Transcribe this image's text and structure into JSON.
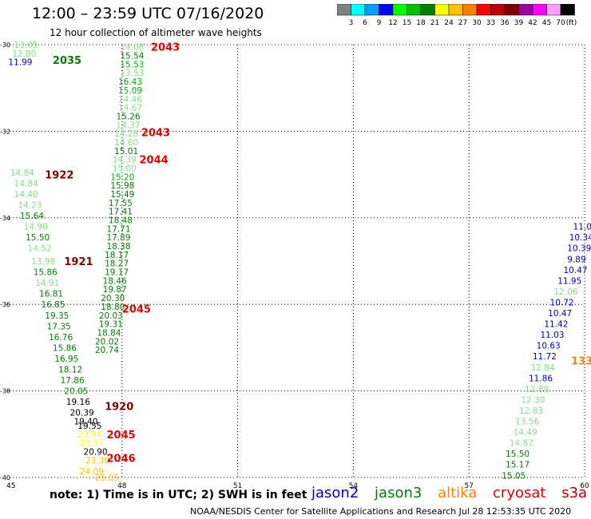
{
  "header": {
    "title": "12:00 – 23:59 UTC 07/16/2020",
    "subtitle": "12 hour collection of altimeter wave heights"
  },
  "scale": {
    "colors": [
      "#808080",
      "#00ffff",
      "#00a0ff",
      "#0000ff",
      "#00ff00",
      "#00c000",
      "#008000",
      "#ffff00",
      "#ffc000",
      "#ff8000",
      "#ff0000",
      "#c00000",
      "#800000",
      "#a000a0",
      "#ff00ff",
      "#ffa0ff",
      "#000000"
    ],
    "labels": [
      "3",
      "6",
      "9",
      "12",
      "15",
      "18",
      "21",
      "24",
      "27",
      "30",
      "33",
      "36",
      "39",
      "42",
      "45",
      "70"
    ],
    "unit": "(ft)"
  },
  "map": {
    "lon_min": 45,
    "lon_max": 60,
    "lat_min": -40,
    "lat_max": -30,
    "lon_ticks": [
      45,
      48,
      51,
      54,
      57,
      60
    ],
    "lat_ticks": [
      -30,
      -32,
      -34,
      -36,
      -38,
      -40
    ],
    "time_labels": [
      {
        "text": "2035",
        "lon": 46.2,
        "lat": -30.35,
        "color": "#008000"
      },
      {
        "text": "2043",
        "lon": 48.75,
        "lat": -30.05,
        "color": "#e00000"
      },
      {
        "text": "2043",
        "lon": 48.5,
        "lat": -32.02,
        "color": "#e00000"
      },
      {
        "text": "2044",
        "lon": 48.45,
        "lat": -32.65,
        "color": "#e00000"
      },
      {
        "text": "1922",
        "lon": 46.0,
        "lat": -33.0,
        "color": "#800000"
      },
      {
        "text": "1921",
        "lon": 46.5,
        "lat": -35.0,
        "color": "#800000"
      },
      {
        "text": "2045",
        "lon": 48.0,
        "lat": -36.1,
        "color": "#e00000"
      },
      {
        "text": "1920",
        "lon": 47.55,
        "lat": -38.35,
        "color": "#800000"
      },
      {
        "text": "2045",
        "lon": 47.6,
        "lat": -39.0,
        "color": "#e00000"
      },
      {
        "text": "2046",
        "lon": 47.6,
        "lat": -39.55,
        "color": "#e00000"
      },
      {
        "text": "133",
        "lon": 59.65,
        "lat": -37.3,
        "color": "#ff8000"
      }
    ],
    "points": [
      {
        "v": "13.05",
        "lon": 45.2,
        "lat": -30.0,
        "c": "#80e080"
      },
      {
        "v": "12.80",
        "lon": 45.15,
        "lat": -30.2,
        "c": "#80e080"
      },
      {
        "v": "11.99",
        "lon": 45.05,
        "lat": -30.4,
        "c": "#0000c0"
      },
      {
        "v": "14.08",
        "lon": 47.95,
        "lat": -30.05,
        "c": "#80e080"
      },
      {
        "v": "15.54",
        "lon": 47.95,
        "lat": -30.25,
        "c": "#008000"
      },
      {
        "v": "15.53",
        "lon": 47.95,
        "lat": -30.45,
        "c": "#00b000"
      },
      {
        "v": "13.53",
        "lon": 47.95,
        "lat": -30.65,
        "c": "#80e080"
      },
      {
        "v": "16.43",
        "lon": 47.9,
        "lat": -30.85,
        "c": "#00b000"
      },
      {
        "v": "15.09",
        "lon": 47.9,
        "lat": -31.05,
        "c": "#00b000"
      },
      {
        "v": "14.46",
        "lon": 47.9,
        "lat": -31.25,
        "c": "#80e080"
      },
      {
        "v": "14.67",
        "lon": 47.9,
        "lat": -31.45,
        "c": "#80e080"
      },
      {
        "v": "15.26",
        "lon": 47.85,
        "lat": -31.65,
        "c": "#008000"
      },
      {
        "v": "14.37",
        "lon": 47.85,
        "lat": -31.85,
        "c": "#80e080"
      },
      {
        "v": "14.28",
        "lon": 47.8,
        "lat": -32.05,
        "c": "#80e080"
      },
      {
        "v": "14.60",
        "lon": 47.8,
        "lat": -32.25,
        "c": "#80e080"
      },
      {
        "v": "15.01",
        "lon": 47.8,
        "lat": -32.45,
        "c": "#008000"
      },
      {
        "v": "14.39",
        "lon": 47.75,
        "lat": -32.65,
        "c": "#80e080"
      },
      {
        "v": "15.00",
        "lon": 47.75,
        "lat": -32.85,
        "c": "#80e080"
      },
      {
        "v": "15.20",
        "lon": 47.7,
        "lat": -33.05,
        "c": "#00b000"
      },
      {
        "v": "15.98",
        "lon": 47.7,
        "lat": -33.25,
        "c": "#008000"
      },
      {
        "v": "15.49",
        "lon": 47.7,
        "lat": -33.45,
        "c": "#008000"
      },
      {
        "v": "17.55",
        "lon": 47.65,
        "lat": -33.65,
        "c": "#008000"
      },
      {
        "v": "17.41",
        "lon": 47.65,
        "lat": -33.85,
        "c": "#008000"
      },
      {
        "v": "18.48",
        "lon": 47.65,
        "lat": -34.05,
        "c": "#008000"
      },
      {
        "v": "17.71",
        "lon": 47.6,
        "lat": -34.25,
        "c": "#008000"
      },
      {
        "v": "17.89",
        "lon": 47.6,
        "lat": -34.45,
        "c": "#008000"
      },
      {
        "v": "18.38",
        "lon": 47.6,
        "lat": -34.65,
        "c": "#008000"
      },
      {
        "v": "18.17",
        "lon": 47.55,
        "lat": -34.85,
        "c": "#008000"
      },
      {
        "v": "18.27",
        "lon": 47.55,
        "lat": -35.05,
        "c": "#008000"
      },
      {
        "v": "19.17",
        "lon": 47.55,
        "lat": -35.25,
        "c": "#008000"
      },
      {
        "v": "18.46",
        "lon": 47.5,
        "lat": -35.45,
        "c": "#008000"
      },
      {
        "v": "19.87",
        "lon": 47.5,
        "lat": -35.65,
        "c": "#008000"
      },
      {
        "v": "20.30",
        "lon": 47.45,
        "lat": -35.85,
        "c": "#008000"
      },
      {
        "v": "18.80",
        "lon": 47.45,
        "lat": -36.05,
        "c": "#008000"
      },
      {
        "v": "20.03",
        "lon": 47.4,
        "lat": -36.25,
        "c": "#008000"
      },
      {
        "v": "19.31",
        "lon": 47.4,
        "lat": -36.45,
        "c": "#008000"
      },
      {
        "v": "18.84",
        "lon": 47.35,
        "lat": -36.65,
        "c": "#008000"
      },
      {
        "v": "20.02",
        "lon": 47.3,
        "lat": -36.85,
        "c": "#008000"
      },
      {
        "v": "20.74",
        "lon": 47.3,
        "lat": -37.05,
        "c": "#008000"
      },
      {
        "v": "14.84",
        "lon": 45.1,
        "lat": -32.95,
        "c": "#80e080"
      },
      {
        "v": "14.84",
        "lon": 45.2,
        "lat": -33.2,
        "c": "#80e080"
      },
      {
        "v": "14.40",
        "lon": 45.2,
        "lat": -33.45,
        "c": "#80e080"
      },
      {
        "v": "14.23",
        "lon": 45.3,
        "lat": -33.7,
        "c": "#80e080"
      },
      {
        "v": "15.64",
        "lon": 45.35,
        "lat": -33.95,
        "c": "#008000"
      },
      {
        "v": "14.90",
        "lon": 45.45,
        "lat": -34.2,
        "c": "#80e080"
      },
      {
        "v": "15.50",
        "lon": 45.5,
        "lat": -34.45,
        "c": "#008000"
      },
      {
        "v": "14.52",
        "lon": 45.55,
        "lat": -34.7,
        "c": "#80e080"
      },
      {
        "v": "13.98",
        "lon": 45.65,
        "lat": -35.0,
        "c": "#80e080"
      },
      {
        "v": "15.86",
        "lon": 45.7,
        "lat": -35.25,
        "c": "#008000"
      },
      {
        "v": "14.91",
        "lon": 45.75,
        "lat": -35.5,
        "c": "#80e080"
      },
      {
        "v": "16.81",
        "lon": 45.85,
        "lat": -35.75,
        "c": "#008000"
      },
      {
        "v": "16.85",
        "lon": 45.9,
        "lat": -36.0,
        "c": "#008000"
      },
      {
        "v": "19.35",
        "lon": 46.0,
        "lat": -36.25,
        "c": "#008000"
      },
      {
        "v": "17.35",
        "lon": 46.05,
        "lat": -36.5,
        "c": "#008000"
      },
      {
        "v": "16.76",
        "lon": 46.1,
        "lat": -36.75,
        "c": "#008000"
      },
      {
        "v": "15.86",
        "lon": 46.2,
        "lat": -37.0,
        "c": "#008000"
      },
      {
        "v": "16.95",
        "lon": 46.25,
        "lat": -37.25,
        "c": "#008000"
      },
      {
        "v": "18.12",
        "lon": 46.35,
        "lat": -37.5,
        "c": "#008000"
      },
      {
        "v": "17.86",
        "lon": 46.4,
        "lat": -37.75,
        "c": "#008000"
      },
      {
        "v": "20.05",
        "lon": 46.5,
        "lat": -38.0,
        "c": "#008000"
      },
      {
        "v": "19.16",
        "lon": 46.55,
        "lat": -38.25,
        "c": "#000000"
      },
      {
        "v": "20.39",
        "lon": 46.65,
        "lat": -38.5,
        "c": "#000000"
      },
      {
        "v": "19.40",
        "lon": 46.75,
        "lat": -38.7,
        "c": "#000000"
      },
      {
        "v": "19.55",
        "lon": 46.85,
        "lat": -38.8,
        "c": "#000000"
      },
      {
        "v": "23.94",
        "lon": 46.85,
        "lat": -39.0,
        "c": "#ffff00"
      },
      {
        "v": "23.57",
        "lon": 46.9,
        "lat": -39.2,
        "c": "#ffff00"
      },
      {
        "v": "20.90",
        "lon": 47.0,
        "lat": -39.4,
        "c": "#000000"
      },
      {
        "v": "23.30",
        "lon": 47.05,
        "lat": -39.6,
        "c": "#ffc000"
      },
      {
        "v": "24.09",
        "lon": 46.9,
        "lat": -39.85,
        "c": "#ffc000"
      },
      {
        "v": "25.05",
        "lon": 47.3,
        "lat": -40.0,
        "c": "#ffc000"
      },
      {
        "v": "11.05",
        "lon": 59.7,
        "lat": -34.2,
        "c": "#0000c0"
      },
      {
        "v": "10.34",
        "lon": 59.6,
        "lat": -34.45,
        "c": "#0000c0"
      },
      {
        "v": "10.39",
        "lon": 59.55,
        "lat": -34.7,
        "c": "#0000c0"
      },
      {
        "v": "9.89",
        "lon": 59.55,
        "lat": -34.95,
        "c": "#0000c0"
      },
      {
        "v": "10.47",
        "lon": 59.45,
        "lat": -35.2,
        "c": "#0000c0"
      },
      {
        "v": "11.95",
        "lon": 59.3,
        "lat": -35.45,
        "c": "#0000c0"
      },
      {
        "v": "12.06",
        "lon": 59.2,
        "lat": -35.7,
        "c": "#80e080"
      },
      {
        "v": "10.72",
        "lon": 59.1,
        "lat": -35.95,
        "c": "#0000c0"
      },
      {
        "v": "10.47",
        "lon": 59.05,
        "lat": -36.2,
        "c": "#0000c0"
      },
      {
        "v": "11.42",
        "lon": 58.95,
        "lat": -36.45,
        "c": "#0000c0"
      },
      {
        "v": "11.03",
        "lon": 58.85,
        "lat": -36.7,
        "c": "#0000c0"
      },
      {
        "v": "10.63",
        "lon": 58.75,
        "lat": -36.95,
        "c": "#0000c0"
      },
      {
        "v": "11.72",
        "lon": 58.65,
        "lat": -37.2,
        "c": "#0000c0"
      },
      {
        "v": "12.84",
        "lon": 58.6,
        "lat": -37.45,
        "c": "#80e080"
      },
      {
        "v": "11.86",
        "lon": 58.55,
        "lat": -37.7,
        "c": "#0000c0"
      },
      {
        "v": "12.89",
        "lon": 58.45,
        "lat": -37.95,
        "c": "#80e080"
      },
      {
        "v": "12.30",
        "lon": 58.35,
        "lat": -38.2,
        "c": "#80e080"
      },
      {
        "v": "12.83",
        "lon": 58.3,
        "lat": -38.45,
        "c": "#80e080"
      },
      {
        "v": "13.56",
        "lon": 58.2,
        "lat": -38.7,
        "c": "#80e080"
      },
      {
        "v": "14.49",
        "lon": 58.15,
        "lat": -38.95,
        "c": "#80e080"
      },
      {
        "v": "14.87",
        "lon": 58.05,
        "lat": -39.2,
        "c": "#80e080"
      },
      {
        "v": "15.50",
        "lon": 57.95,
        "lat": -39.45,
        "c": "#008000"
      },
      {
        "v": "15.17",
        "lon": 57.95,
        "lat": -39.7,
        "c": "#008000"
      },
      {
        "v": "15.05",
        "lon": 57.85,
        "lat": -39.95,
        "c": "#008000"
      }
    ]
  },
  "footer": {
    "note": "note: 1) Time is in UTC; 2) SWH is in feet",
    "satellites": [
      {
        "name": "jason2",
        "color": "#0000c0"
      },
      {
        "name": "jason3",
        "color": "#008000"
      },
      {
        "name": "altika",
        "color": "#ff8000"
      },
      {
        "name": "cryosat",
        "color": "#e00000"
      },
      {
        "name": "s3a",
        "color": "#c00000"
      }
    ],
    "credit": "NOAA/NESDIS Center for Satellite Applications and Research   Jul 28 12:53:35 UTC 2020"
  }
}
